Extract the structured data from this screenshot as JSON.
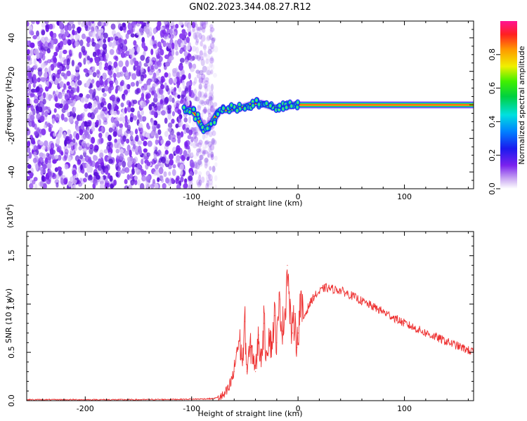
{
  "title": "GN02.2023.344.08.27.R12",
  "colors": {
    "snr_line": "#ee3333",
    "scatter": "#7a22ee",
    "frame": "#000000"
  },
  "chart_data": [
    {
      "type": "heatmap",
      "xlabel": "Height of straight line (km)",
      "ylabel": "Frequency (Hz)",
      "xlim": [
        -255,
        165
      ],
      "ylim": [
        -50,
        50
      ],
      "x_ticks": [
        "-200",
        "-100",
        "0",
        "100"
      ],
      "y_ticks": [
        "-40",
        "-20",
        "0",
        "20",
        "40"
      ],
      "ridge": {
        "x": [
          -105,
          -100,
          -95,
          -90,
          -85,
          -80,
          -75,
          -70,
          -65,
          -60,
          -55,
          -50,
          -45,
          -40,
          -35,
          -30,
          -25,
          -20,
          -15,
          -10,
          -5,
          0,
          10,
          165
        ],
        "y": [
          -3,
          -3,
          -7,
          -14,
          -13,
          -10,
          -4,
          -3,
          -3,
          -2,
          -2,
          -1,
          0,
          1,
          1,
          0,
          -1,
          -2,
          -1,
          -1,
          0,
          0,
          0,
          0
        ]
      },
      "noise_region_x": [
        -255,
        -85
      ],
      "colorbar": {
        "label": "Normalized spectral amplitude",
        "range": [
          0,
          1
        ],
        "ticks": [
          "0.0",
          "0.2",
          "0.4",
          "0.6",
          "0.8"
        ]
      }
    },
    {
      "type": "line",
      "xlabel": "Height of straight line (km)",
      "ylabel": "SNR (10 * v/v)",
      "multiplier": "(x10",
      "multiplier_exp": "4",
      "multiplier_close": ")",
      "xlim": [
        -255,
        165
      ],
      "ylim": [
        0,
        1.75
      ],
      "x_ticks": [
        "-200",
        "-100",
        "0",
        "100"
      ],
      "y_ticks": [
        "0.0",
        "0.5",
        "1.0",
        "1.5"
      ],
      "series": [
        {
          "x": [
            -255,
            -200,
            -150,
            -100,
            -80,
            -70,
            -65,
            -60,
            -58,
            -55,
            -52,
            -50,
            -48,
            -45,
            -42,
            -40,
            -37,
            -35,
            -32,
            -30,
            -27,
            -25,
            -22,
            -20,
            -17,
            -15,
            -12,
            -10,
            -7,
            -5,
            -3,
            -1,
            0,
            2,
            5,
            10,
            15,
            20,
            25,
            30,
            40,
            50,
            60,
            80,
            100,
            120,
            140,
            165
          ],
          "y": [
            0.01,
            0.01,
            0.01,
            0.015,
            0.02,
            0.05,
            0.12,
            0.3,
            0.5,
            0.62,
            0.4,
            0.82,
            0.3,
            0.55,
            0.48,
            0.3,
            0.68,
            0.42,
            0.8,
            0.5,
            0.7,
            0.55,
            0.88,
            0.6,
            1.05,
            0.72,
            0.95,
            1.4,
            0.8,
            0.7,
            0.9,
            0.55,
            0.7,
            1.0,
            0.85,
            0.98,
            1.08,
            1.12,
            1.17,
            1.16,
            1.14,
            1.09,
            1.03,
            0.92,
            0.8,
            0.7,
            0.61,
            0.5
          ]
        }
      ]
    }
  ]
}
